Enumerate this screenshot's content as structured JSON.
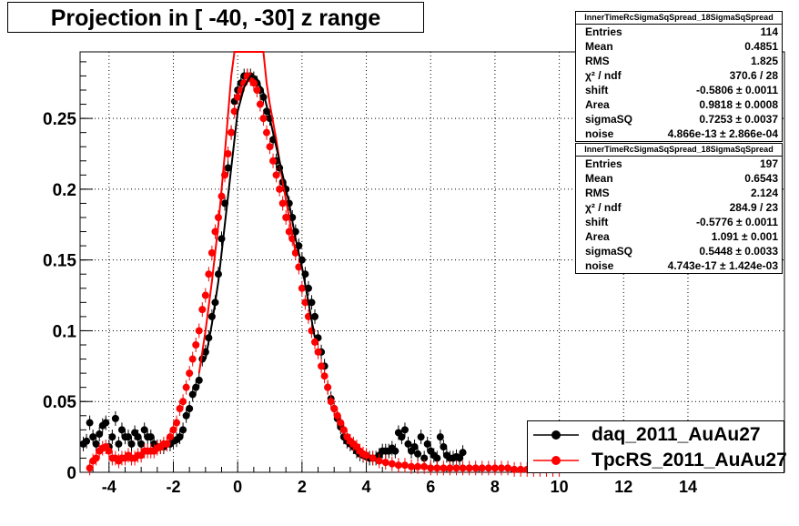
{
  "title": "Projection in [ -40, -30] z range",
  "stats_boxes": [
    {
      "name": "InnerTimeRcSigmaSqSpread_18SigmaSqSpread",
      "rows": [
        {
          "label": "Entries",
          "value": "114"
        },
        {
          "label": "Mean",
          "value": "0.4851"
        },
        {
          "label": "RMS",
          "value": "1.825"
        },
        {
          "label": "χ² / ndf",
          "value": "370.6 / 28"
        },
        {
          "label": "shift",
          "value": "-0.5806 ± 0.0011"
        },
        {
          "label": "Area",
          "value": "0.9818 ± 0.0008"
        },
        {
          "label": "sigmaSQ",
          "value": "0.7253 ± 0.0037"
        },
        {
          "label": "noise",
          "value": "4.866e-13 ± 2.866e-04"
        }
      ]
    },
    {
      "name": "InnerTimeRcSigmaSqSpread_18SigmaSqSpread",
      "rows": [
        {
          "label": "Entries",
          "value": "197"
        },
        {
          "label": "Mean",
          "value": "0.6543"
        },
        {
          "label": "RMS",
          "value": "2.124"
        },
        {
          "label": "χ² / ndf",
          "value": "284.9 / 23"
        },
        {
          "label": "shift",
          "value": "-0.5776 ± 0.0011"
        },
        {
          "label": "Area",
          "value": "1.091 ± 0.001"
        },
        {
          "label": "sigmaSQ",
          "value": "0.5448 ± 0.0033"
        },
        {
          "label": "noise",
          "value": "4.743e-17 ± 1.424e-03"
        }
      ]
    }
  ],
  "legend": [
    {
      "label": "daq_2011_AuAu27",
      "color": "#000000"
    },
    {
      "label": "TpcRS_2011_AuAu27",
      "color": "#ff0000"
    }
  ],
  "chart_data": {
    "type": "scatter",
    "title": "Projection in [ -40, -30] z range",
    "xlim": [
      -4.9,
      17.0
    ],
    "ylim": [
      0,
      0.297
    ],
    "x_ticks": [
      -4,
      -2,
      0,
      2,
      4,
      6,
      8,
      10,
      12,
      14
    ],
    "x_tick_labels": [
      "-4",
      "-2",
      "0",
      "2",
      "4",
      "6",
      "8",
      "10",
      "12",
      "14"
    ],
    "y_ticks": [
      0,
      0.05,
      0.1,
      0.15,
      0.2,
      0.25
    ],
    "y_tick_labels": [
      "0",
      "0.05",
      "0.1",
      "0.15",
      "0.2",
      "0.25"
    ],
    "grid": true,
    "legend_position": "bottom-right",
    "series": [
      {
        "name": "daq_2011_AuAu27",
        "color": "#000000",
        "x": [
          -4.8,
          -4.7,
          -4.6,
          -4.5,
          -4.4,
          -4.3,
          -4.2,
          -4.1,
          -4.0,
          -3.9,
          -3.8,
          -3.7,
          -3.6,
          -3.5,
          -3.4,
          -3.3,
          -3.2,
          -3.1,
          -3.0,
          -2.9,
          -2.8,
          -2.7,
          -2.6,
          -2.5,
          -2.4,
          -2.3,
          -2.2,
          -2.1,
          -2.0,
          -1.9,
          -1.8,
          -1.7,
          -1.6,
          -1.5,
          -1.4,
          -1.3,
          -1.2,
          -1.1,
          -1.0,
          -0.9,
          -0.8,
          -0.7,
          -0.6,
          -0.5,
          -0.4,
          -0.3,
          -0.2,
          -0.1,
          0.0,
          0.1,
          0.2,
          0.3,
          0.4,
          0.5,
          0.6,
          0.7,
          0.8,
          0.9,
          1.0,
          1.1,
          1.2,
          1.3,
          1.4,
          1.5,
          1.6,
          1.7,
          1.8,
          1.9,
          2.0,
          2.1,
          2.2,
          2.3,
          2.4,
          2.5,
          2.6,
          2.7,
          2.8,
          2.9,
          3.0,
          3.1,
          3.2,
          3.3,
          3.4,
          3.5,
          3.6,
          3.7,
          3.8,
          3.9,
          4.0,
          4.1,
          4.2,
          4.3,
          4.4,
          4.5,
          4.6,
          4.7,
          4.8,
          4.9,
          5.0,
          5.1,
          5.2,
          5.3,
          5.4,
          5.5,
          5.6,
          5.7,
          5.8,
          5.9,
          6.0,
          6.1,
          6.2,
          6.3,
          6.4,
          6.5,
          6.6,
          6.7,
          6.8,
          6.9,
          7.0
        ],
        "y": [
          0.02,
          0.022,
          0.035,
          0.025,
          0.02,
          0.027,
          0.033,
          0.035,
          0.018,
          0.025,
          0.038,
          0.02,
          0.03,
          0.025,
          0.025,
          0.02,
          0.028,
          0.025,
          0.02,
          0.03,
          0.025,
          0.025,
          0.02,
          0.018,
          0.018,
          0.018,
          0.02,
          0.02,
          0.022,
          0.023,
          0.025,
          0.03,
          0.04,
          0.045,
          0.055,
          0.06,
          0.065,
          0.08,
          0.085,
          0.095,
          0.11,
          0.12,
          0.14,
          0.165,
          0.19,
          0.215,
          0.24,
          0.262,
          0.27,
          0.275,
          0.28,
          0.28,
          0.28,
          0.278,
          0.275,
          0.27,
          0.265,
          0.255,
          0.25,
          0.235,
          0.22,
          0.215,
          0.205,
          0.2,
          0.19,
          0.18,
          0.17,
          0.16,
          0.15,
          0.14,
          0.13,
          0.12,
          0.11,
          0.095,
          0.085,
          0.075,
          0.06,
          0.052,
          0.045,
          0.038,
          0.032,
          0.025,
          0.022,
          0.02,
          0.018,
          0.015,
          0.013,
          0.012,
          0.011,
          0.01,
          0.01,
          0.01,
          0.012,
          0.015,
          0.015,
          0.015,
          0.017,
          0.015,
          0.028,
          0.025,
          0.03,
          0.02,
          0.015,
          0.018,
          0.013,
          0.025,
          0.01,
          0.02,
          0.015,
          0.012,
          0.01,
          0.025,
          0.018,
          0.012,
          0.01,
          0.01,
          0.011,
          0.01,
          0.014
        ]
      },
      {
        "name": "TpcRS_2011_AuAu27",
        "color": "#ff0000",
        "x": [
          -4.6,
          -4.5,
          -4.4,
          -4.3,
          -4.2,
          -4.1,
          -4.0,
          -3.9,
          -3.8,
          -3.7,
          -3.6,
          -3.5,
          -3.4,
          -3.3,
          -3.2,
          -3.1,
          -3.0,
          -2.9,
          -2.8,
          -2.7,
          -2.6,
          -2.5,
          -2.4,
          -2.3,
          -2.2,
          -2.1,
          -2.0,
          -1.9,
          -1.8,
          -1.7,
          -1.6,
          -1.5,
          -1.4,
          -1.3,
          -1.2,
          -1.1,
          -1.0,
          -0.9,
          -0.8,
          -0.7,
          -0.6,
          -0.5,
          -0.4,
          -0.3,
          -0.2,
          -0.1,
          0.0,
          0.1,
          0.2,
          0.3,
          0.4,
          0.5,
          0.6,
          0.7,
          0.8,
          0.9,
          1.0,
          1.1,
          1.2,
          1.3,
          1.4,
          1.5,
          1.6,
          1.7,
          1.8,
          1.9,
          2.0,
          2.1,
          2.2,
          2.3,
          2.4,
          2.5,
          2.6,
          2.7,
          2.8,
          2.9,
          3.0,
          3.1,
          3.2,
          3.3,
          3.4,
          3.5,
          3.6,
          3.7,
          3.8,
          3.9,
          4.0,
          4.2,
          4.4,
          4.6,
          4.8,
          5.0,
          5.2,
          5.4,
          5.6,
          5.8,
          6.0,
          6.2,
          6.4,
          6.6,
          6.8,
          7.0,
          7.2,
          7.4,
          7.6,
          7.8,
          8.0,
          8.2,
          8.4,
          8.6,
          8.8,
          9.0,
          9.2,
          9.4,
          9.6,
          9.8,
          10.0
        ],
        "y": [
          0.003,
          0.008,
          0.01,
          0.015,
          0.017,
          0.018,
          0.015,
          0.01,
          0.01,
          0.008,
          0.01,
          0.01,
          0.012,
          0.01,
          0.01,
          0.012,
          0.012,
          0.015,
          0.015,
          0.015,
          0.015,
          0.017,
          0.018,
          0.02,
          0.02,
          0.025,
          0.03,
          0.035,
          0.045,
          0.05,
          0.06,
          0.07,
          0.08,
          0.09,
          0.1,
          0.115,
          0.125,
          0.14,
          0.155,
          0.17,
          0.18,
          0.195,
          0.21,
          0.225,
          0.24,
          0.255,
          0.265,
          0.27,
          0.275,
          0.28,
          0.278,
          0.275,
          0.27,
          0.26,
          0.25,
          0.24,
          0.23,
          0.22,
          0.21,
          0.2,
          0.19,
          0.18,
          0.17,
          0.165,
          0.155,
          0.145,
          0.13,
          0.12,
          0.11,
          0.1,
          0.092,
          0.085,
          0.075,
          0.068,
          0.06,
          0.05,
          0.045,
          0.04,
          0.035,
          0.03,
          0.025,
          0.022,
          0.02,
          0.018,
          0.015,
          0.013,
          0.012,
          0.01,
          0.008,
          0.007,
          0.006,
          0.005,
          0.005,
          0.004,
          0.004,
          0.004,
          0.003,
          0.003,
          0.003,
          0.003,
          0.003,
          0.003,
          0.003,
          0.003,
          0.003,
          0.003,
          0.003,
          0.003,
          0.003,
          0.002,
          0.002,
          0.002,
          0.002,
          0.002,
          0.002,
          0.002,
          0.002
        ]
      },
      {
        "name": "",
        "color": "#ff0000",
        "type": "line",
        "x": [
          -1.2,
          -1.0,
          -0.8,
          -0.6,
          -0.4,
          -0.2,
          -0.1,
          0.8,
          0.9,
          1.0,
          1.2,
          1.4,
          1.6,
          1.8
        ],
        "y": [
          0.07,
          0.1,
          0.135,
          0.175,
          0.225,
          0.28,
          0.297,
          0.297,
          0.275,
          0.26,
          0.235,
          0.205,
          0.18,
          0.155
        ]
      },
      {
        "name": "",
        "color": "#000000",
        "type": "line",
        "x": [
          -1.0,
          -0.8,
          -0.6,
          -0.4,
          -0.2,
          0.0,
          0.2,
          0.4,
          0.6,
          0.8,
          1.0,
          1.2,
          1.4,
          1.6,
          1.8,
          2.0,
          2.2,
          2.4
        ],
        "y": [
          0.08,
          0.105,
          0.135,
          0.175,
          0.215,
          0.255,
          0.272,
          0.28,
          0.278,
          0.268,
          0.25,
          0.23,
          0.21,
          0.19,
          0.165,
          0.145,
          0.12,
          0.095
        ]
      }
    ]
  }
}
